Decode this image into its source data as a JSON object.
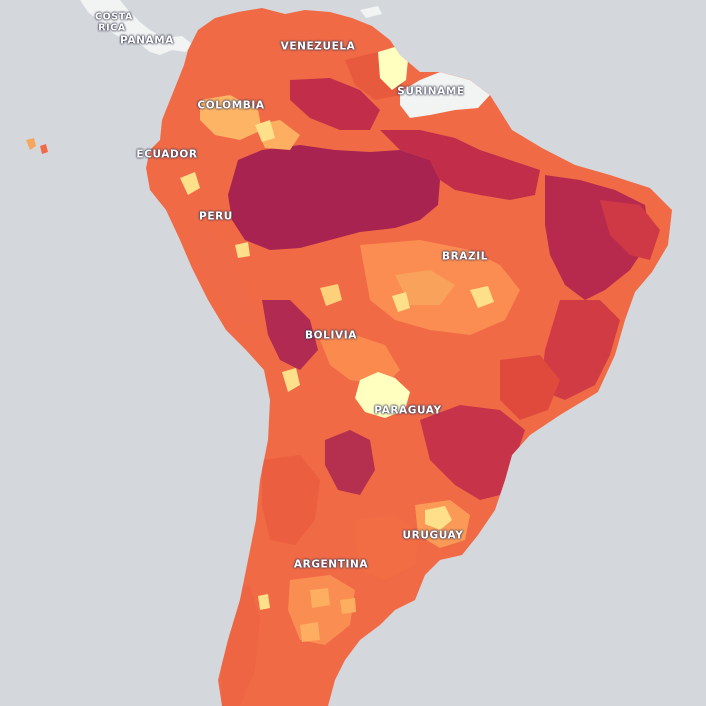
{
  "map": {
    "colors": {
      "ocean": "#d4d8dc",
      "no_data": "#f2f4f3",
      "class_1": "#ffffbf",
      "class_2": "#fee08b",
      "class_3": "#fdae61",
      "class_4": "#f46d43",
      "class_5": "#e0453a",
      "class_6": "#c22e4a",
      "class_7": "#9e1f4e"
    },
    "labels": {
      "costa_rica_1": "COSTA",
      "costa_rica_2": "RICA",
      "panama": "PANAMA",
      "venezuela": "VENEZUELA",
      "suriname": "SURINAME",
      "colombia": "COLOMBIA",
      "ecuador": "ECUADOR",
      "peru": "PERU",
      "brazil": "BRAZIL",
      "bolivia": "BOLIVIA",
      "paraguay": "PARAGUAY",
      "uruguay": "URUGUAY",
      "argentina": "ARGENTINA"
    }
  }
}
